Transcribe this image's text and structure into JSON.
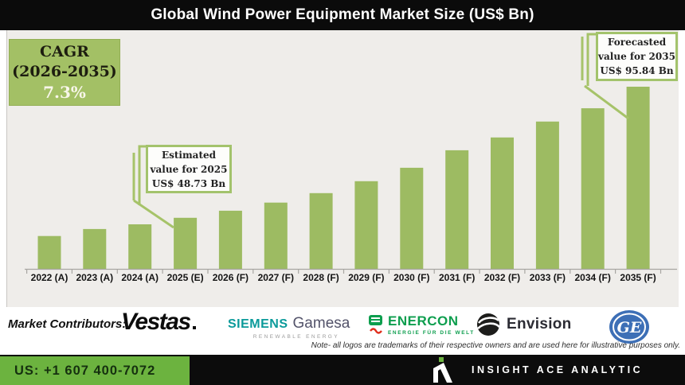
{
  "title": "Global Wind Power Equipment Market Size (US$ Bn)",
  "cagr_box": {
    "line1": "CAGR",
    "line2": "(2026-2035)",
    "value": "7.3%"
  },
  "annotations": {
    "estimated": {
      "line1": "Estimated",
      "line2": "value for 2025",
      "line3": "US$ 48.73 Bn"
    },
    "forecasted": {
      "line1": "Forecasted",
      "line2": "value for 2035",
      "line3": "US$ 95.84 Bn"
    }
  },
  "chart_data": {
    "type": "bar",
    "title": "Global Wind Power Equipment Market Size (US$ Bn)",
    "unit": "US$ Bn",
    "categories": [
      "2022 (A)",
      "2023 (A)",
      "2024 (A)",
      "2025 (E)",
      "2026 (F)",
      "2027 (F)",
      "2028 (F)",
      "2029 (F)",
      "2030 (F)",
      "2031 (F)",
      "2032 (F)",
      "2033 (F)",
      "2034 (F)",
      "2035 (F)"
    ],
    "values": [
      42.2,
      44.7,
      46.4,
      48.73,
      51.3,
      54.2,
      57.6,
      61.9,
      66.7,
      73.0,
      77.6,
      83.3,
      88.1,
      95.84
    ],
    "labeled_points": {
      "2025 (E)": 48.73,
      "2035 (F)": 95.84
    },
    "cagr_2026_2035": "7.3%",
    "bar_color": "#9dbb62",
    "axis_color": "#a8a6a2",
    "callout_color": "#a6c369",
    "grid": false,
    "legend": false
  },
  "contributors": {
    "label": "Market Contributors:",
    "vestas": {
      "name": "Vestas"
    },
    "siemens_gamesa": {
      "part1": "SIEMENS",
      "part2": "Gamesa",
      "tagline": "RENEWABLE ENERGY"
    },
    "enercon": {
      "name": "ENERCON",
      "tagline": "ENERGIE FÜR DIE WELT"
    },
    "envision": {
      "name": "Envision"
    },
    "ge": {
      "monogram": "GE"
    }
  },
  "note": "Note- all logos are trademarks of their respective owners and are used here for illustrative purposes only.",
  "footer": {
    "phone": "US: +1 607 400-7072",
    "brand": "INSIGHT ACE ANALYTIC"
  },
  "colors": {
    "title_bg": "#0b0b0b",
    "chart_bg": "#efedea",
    "accent_green": "#a3c065",
    "footer_green": "#6cb33f",
    "siemens_teal": "#0a9a9a",
    "enercon_green": "#0d9e4e",
    "envision_black": "#1d1d1b",
    "ge_blue": "#3d6fb6"
  }
}
